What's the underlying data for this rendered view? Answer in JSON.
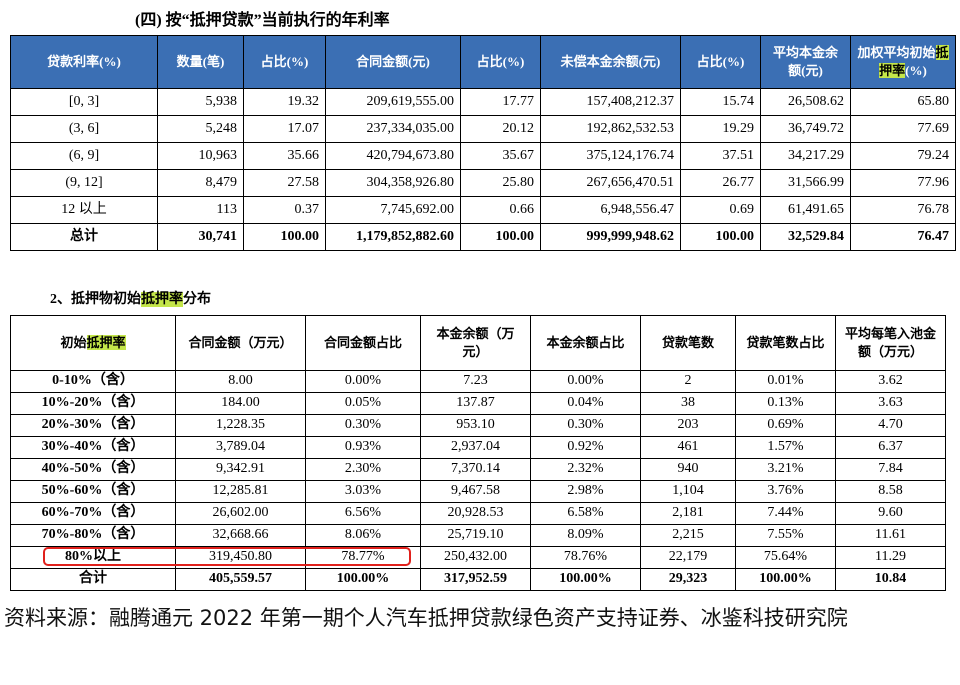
{
  "table1": {
    "title": "(四) 按“抵押贷款”当前执行的年利率",
    "header_color": "#3b6fb4",
    "header": [
      "贷款利率(%)",
      "数量(笔)",
      "占比(%)",
      "合同金额(元)",
      "占比(%)",
      "未偿本金余额(元)",
      "占比(%)",
      "平均本金余额(元)",
      [
        "加权平均初始",
        "抵押率",
        "(%)"
      ]
    ],
    "rows": [
      [
        "[0, 3]",
        "5,938",
        "19.32",
        "209,619,555.00",
        "17.77",
        "157,408,212.37",
        "15.74",
        "26,508.62",
        "65.80"
      ],
      [
        "(3, 6]",
        "5,248",
        "17.07",
        "237,334,035.00",
        "20.12",
        "192,862,532.53",
        "19.29",
        "36,749.72",
        "77.69"
      ],
      [
        "(6, 9]",
        "10,963",
        "35.66",
        "420,794,673.80",
        "35.67",
        "375,124,176.74",
        "37.51",
        "34,217.29",
        "79.24"
      ],
      [
        "(9, 12]",
        "8,479",
        "27.58",
        "304,358,926.80",
        "25.80",
        "267,656,470.51",
        "26.77",
        "31,566.99",
        "77.96"
      ],
      [
        "12 以上",
        "113",
        "0.37",
        "7,745,692.00",
        "0.66",
        "6,948,556.47",
        "0.69",
        "61,491.65",
        "76.78"
      ]
    ],
    "total": [
      "总计",
      "30,741",
      "100.00",
      "1,179,852,882.60",
      "100.00",
      "999,999,948.62",
      "100.00",
      "32,529.84",
      "76.47"
    ]
  },
  "section2_title": [
    "2、抵押物初始",
    "抵押率",
    "分布"
  ],
  "table2": {
    "header": [
      [
        "初始",
        "抵押率"
      ],
      "合同金额（万元）",
      "合同金额占比",
      "本金余额（万元）",
      "本金余额占比",
      "贷款笔数",
      "贷款笔数占比",
      "平均每笔入池金额（万元）"
    ],
    "rows": [
      [
        "0-10%（含）",
        "8.00",
        "0.00%",
        "7.23",
        "0.00%",
        "2",
        "0.01%",
        "3.62"
      ],
      [
        "10%-20%（含）",
        "184.00",
        "0.05%",
        "137.87",
        "0.04%",
        "38",
        "0.13%",
        "3.63"
      ],
      [
        "20%-30%（含）",
        "1,228.35",
        "0.30%",
        "953.10",
        "0.30%",
        "203",
        "0.69%",
        "4.70"
      ],
      [
        "30%-40%（含）",
        "3,789.04",
        "0.93%",
        "2,937.04",
        "0.92%",
        "461",
        "1.57%",
        "6.37"
      ],
      [
        "40%-50%（含）",
        "9,342.91",
        "2.30%",
        "7,370.14",
        "2.32%",
        "940",
        "3.21%",
        "7.84"
      ],
      [
        "50%-60%（含）",
        "12,285.81",
        "3.03%",
        "9,467.58",
        "2.98%",
        "1,104",
        "3.76%",
        "8.58"
      ],
      [
        "60%-70%（含）",
        "26,602.00",
        "6.56%",
        "20,928.53",
        "6.58%",
        "2,181",
        "7.44%",
        "9.60"
      ],
      [
        "70%-80%（含）",
        "32,668.66",
        "8.06%",
        "25,719.10",
        "8.09%",
        "2,215",
        "7.55%",
        "11.61"
      ],
      [
        "80%以上",
        "319,450.80",
        "78.77%",
        "250,432.00",
        "78.76%",
        "22,179",
        "75.64%",
        "11.29"
      ]
    ],
    "total": [
      "合计",
      "405,559.57",
      "100.00%",
      "317,952.59",
      "100.00%",
      "29,323",
      "100.00%",
      "10.84"
    ],
    "boxed_row": 8,
    "boxed_columns": 3,
    "box_color": "#e0201b"
  },
  "highlight_segment": 1,
  "highlight_color": "#c4e64a",
  "source": "资料来源：融腾通元 2022 年第一期个人汽车抵押贷款绿色资产支持证券、冰鉴科技研究院"
}
